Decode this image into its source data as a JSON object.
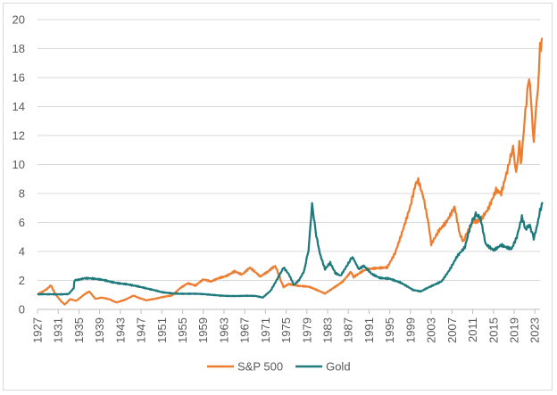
{
  "chart_data": {
    "type": "line",
    "title": "",
    "xlabel": "",
    "ylabel": "",
    "ylim": [
      0,
      20
    ],
    "yticks": [
      "0",
      "2",
      "4",
      "6",
      "8",
      "10",
      "12",
      "14",
      "16",
      "18",
      "20"
    ],
    "xlim": [
      1927,
      2024
    ],
    "xticks": [
      "1927",
      "1931",
      "1935",
      "1939",
      "1943",
      "1947",
      "1951",
      "1955",
      "1959",
      "1963",
      "1967",
      "1971",
      "1975",
      "1979",
      "1983",
      "1987",
      "1991",
      "1995",
      "1999",
      "2003",
      "2007",
      "2011",
      "2015",
      "2019",
      "2023"
    ],
    "grid": "horizontal",
    "legend": "bottom",
    "series": [
      {
        "name": "S&P 500",
        "color": "#ED7D31",
        "points": [
          [
            1927,
            1.0
          ],
          [
            1928.3,
            1.3
          ],
          [
            1929.6,
            1.7
          ],
          [
            1930.3,
            1.2
          ],
          [
            1931.2,
            0.7
          ],
          [
            1932.3,
            0.35
          ],
          [
            1933.3,
            0.7
          ],
          [
            1934.5,
            0.6
          ],
          [
            1936.0,
            1.0
          ],
          [
            1937.0,
            1.2
          ],
          [
            1938.2,
            0.7
          ],
          [
            1939.5,
            0.8
          ],
          [
            1941.0,
            0.7
          ],
          [
            1942.3,
            0.5
          ],
          [
            1944.0,
            0.7
          ],
          [
            1945.5,
            0.95
          ],
          [
            1946.3,
            0.8
          ],
          [
            1948.0,
            0.6
          ],
          [
            1949.5,
            0.7
          ],
          [
            1951.0,
            0.85
          ],
          [
            1953.0,
            1.0
          ],
          [
            1954.5,
            1.5
          ],
          [
            1956.0,
            1.8
          ],
          [
            1957.5,
            1.6
          ],
          [
            1959.0,
            2.0
          ],
          [
            1960.5,
            1.9
          ],
          [
            1962.0,
            2.2
          ],
          [
            1963.5,
            2.4
          ],
          [
            1965.0,
            2.7
          ],
          [
            1966.5,
            2.4
          ],
          [
            1968.0,
            2.8
          ],
          [
            1970.0,
            2.2
          ],
          [
            1971.5,
            2.6
          ],
          [
            1972.9,
            2.9
          ],
          [
            1974.5,
            1.6
          ],
          [
            1975.5,
            1.8
          ],
          [
            1977.5,
            1.6
          ],
          [
            1979.5,
            1.5
          ],
          [
            1981.0,
            1.3
          ],
          [
            1982.5,
            1.1
          ],
          [
            1984.0,
            1.5
          ],
          [
            1986.0,
            2.0
          ],
          [
            1987.5,
            2.6
          ],
          [
            1988.0,
            2.2
          ],
          [
            1990.0,
            2.6
          ],
          [
            1992.0,
            2.8
          ],
          [
            1994.5,
            3.0
          ],
          [
            1996.0,
            4.0
          ],
          [
            1997.5,
            5.5
          ],
          [
            1999.0,
            7.0
          ],
          [
            2000.0,
            8.4
          ],
          [
            2000.5,
            8.6
          ],
          [
            2001.5,
            7.5
          ],
          [
            2002.5,
            5.8
          ],
          [
            2003.0,
            4.5
          ],
          [
            2004.5,
            5.6
          ],
          [
            2006.0,
            6.3
          ],
          [
            2007.5,
            7.2
          ],
          [
            2008.5,
            5.2
          ],
          [
            2009.2,
            4.8
          ],
          [
            2010.0,
            5.2
          ],
          [
            2011.0,
            5.8
          ],
          [
            2012.5,
            6.0
          ],
          [
            2014.0,
            7.0
          ],
          [
            2015.5,
            8.5
          ],
          [
            2016.5,
            8.3
          ],
          [
            2017.5,
            9.6
          ],
          [
            2018.8,
            10.8
          ],
          [
            2019.4,
            9.6
          ],
          [
            2020.0,
            11.5
          ],
          [
            2020.3,
            9.6
          ],
          [
            2021.0,
            12.5
          ],
          [
            2021.9,
            16.5
          ],
          [
            2022.4,
            14.0
          ],
          [
            2022.8,
            12.0
          ],
          [
            2023.2,
            13.5
          ],
          [
            2023.6,
            15.5
          ],
          [
            2024.0,
            18.0
          ],
          [
            2024.5,
            18.7
          ]
        ]
      },
      {
        "name": "Gold",
        "color": "#1E7A7C",
        "points": [
          [
            1927,
            1.0
          ],
          [
            1933.0,
            1.1
          ],
          [
            1934.0,
            1.5
          ],
          [
            1934.2,
            2.1
          ],
          [
            1936.0,
            2.1
          ],
          [
            1940.0,
            2.0
          ],
          [
            1944.0,
            1.8
          ],
          [
            1948.0,
            1.4
          ],
          [
            1951.0,
            1.2
          ],
          [
            1955.0,
            1.1
          ],
          [
            1960.0,
            1.0
          ],
          [
            1965.0,
            0.95
          ],
          [
            1969.0,
            0.9
          ],
          [
            1970.5,
            0.8
          ],
          [
            1972.0,
            1.3
          ],
          [
            1973.5,
            2.3
          ],
          [
            1974.5,
            3.0
          ],
          [
            1975.5,
            2.5
          ],
          [
            1976.5,
            1.7
          ],
          [
            1977.5,
            2.0
          ],
          [
            1978.5,
            2.6
          ],
          [
            1979.3,
            4.0
          ],
          [
            1980.0,
            7.0
          ],
          [
            1980.8,
            5.2
          ],
          [
            1981.5,
            3.8
          ],
          [
            1982.5,
            2.8
          ],
          [
            1983.5,
            3.3
          ],
          [
            1984.5,
            2.6
          ],
          [
            1985.5,
            2.4
          ],
          [
            1987.0,
            3.2
          ],
          [
            1987.8,
            3.5
          ],
          [
            1989.0,
            2.7
          ],
          [
            1990.0,
            2.9
          ],
          [
            1991.5,
            2.4
          ],
          [
            1993.0,
            2.2
          ],
          [
            1995.0,
            2.2
          ],
          [
            1997.0,
            1.9
          ],
          [
            1999.5,
            1.3
          ],
          [
            2001.0,
            1.2
          ],
          [
            2003.0,
            1.6
          ],
          [
            2005.0,
            2.0
          ],
          [
            2006.5,
            2.8
          ],
          [
            2008.0,
            3.7
          ],
          [
            2009.5,
            4.2
          ],
          [
            2010.5,
            5.5
          ],
          [
            2011.6,
            6.8
          ],
          [
            2012.5,
            6.2
          ],
          [
            2013.5,
            4.5
          ],
          [
            2015.0,
            4.2
          ],
          [
            2016.5,
            4.6
          ],
          [
            2017.5,
            4.4
          ],
          [
            2018.5,
            4.2
          ],
          [
            2019.5,
            4.9
          ],
          [
            2020.5,
            6.2
          ],
          [
            2021.2,
            5.5
          ],
          [
            2022.0,
            5.6
          ],
          [
            2022.8,
            5.0
          ],
          [
            2023.5,
            5.8
          ],
          [
            2024.0,
            6.8
          ],
          [
            2024.5,
            7.4
          ]
        ]
      }
    ]
  }
}
